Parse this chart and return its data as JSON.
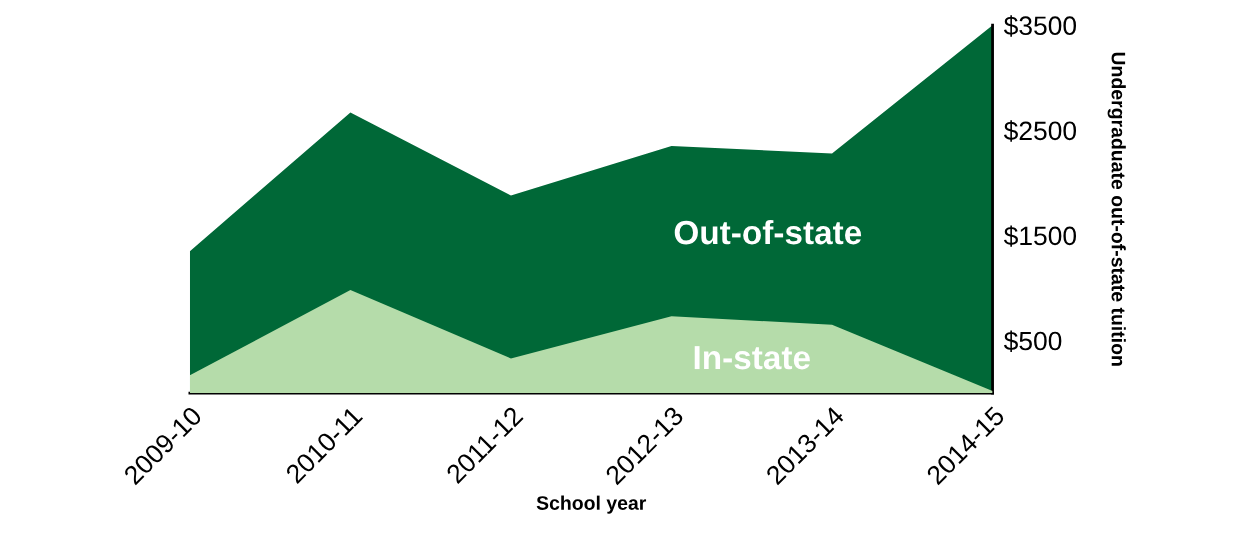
{
  "chart_data": {
    "type": "area",
    "xlabel": "School year",
    "ylabel": "Undergraduate out-of-state tuition",
    "categories": [
      "2009-10",
      "2010-11",
      "2011-12",
      "2012-13",
      "2013-14",
      "2014-15"
    ],
    "series": [
      {
        "name": "Out-of-state",
        "color": "#006837",
        "values": [
          1350,
          2670,
          1880,
          2350,
          2280,
          3500
        ]
      },
      {
        "name": "In-state",
        "color": "#b5dcaa",
        "values": [
          170,
          980,
          330,
          730,
          650,
          20
        ]
      }
    ],
    "ylim": [
      0,
      3500
    ],
    "yticks": [
      {
        "value": 500,
        "label": "$500"
      },
      {
        "value": 1500,
        "label": "$1500"
      },
      {
        "value": 2500,
        "label": "$2500"
      },
      {
        "value": 3500,
        "label": "$3500"
      }
    ],
    "grid": false
  }
}
